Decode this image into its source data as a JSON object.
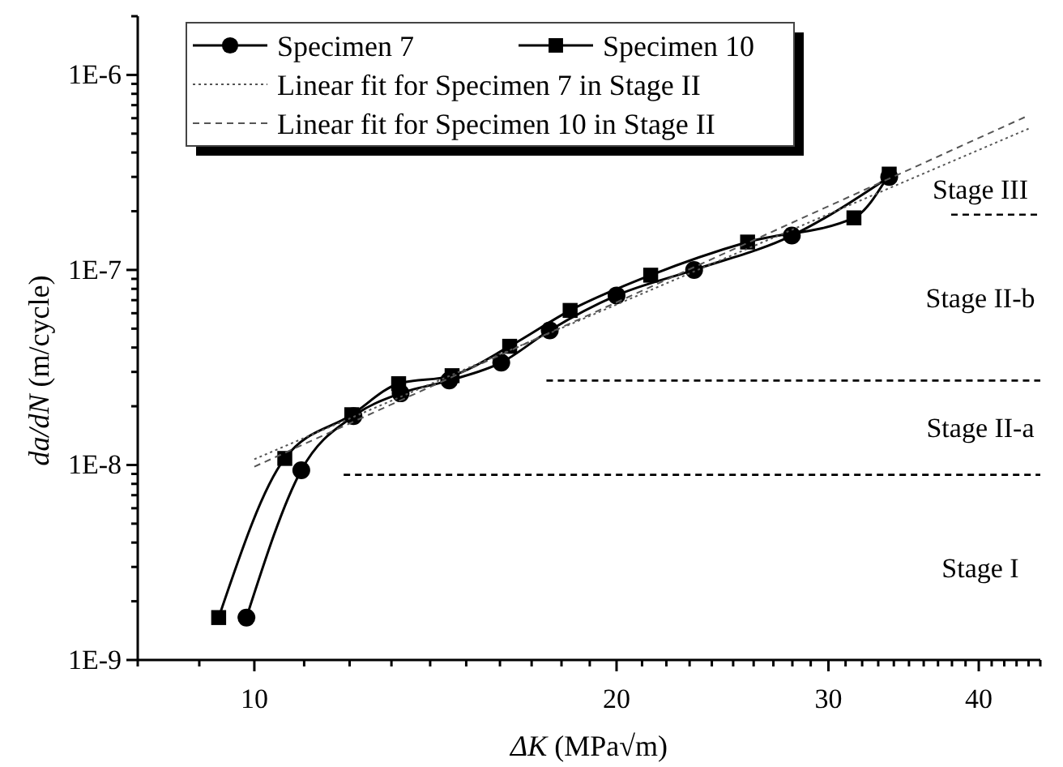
{
  "chart_data": {
    "type": "line",
    "xlabel": "ΔK (MPa√m)",
    "ylabel": "da/dN (m/cycle)",
    "log": "xy",
    "legend": "top",
    "grid": false,
    "xlim": [
      8,
      45
    ],
    "ylim": [
      1e-09,
      2e-06
    ],
    "xticks": [
      {
        "value": 8,
        "label": null
      },
      {
        "value": 9,
        "label": null
      },
      10,
      {
        "value": 11,
        "label": null
      },
      {
        "value": 12,
        "label": null
      },
      {
        "value": 13,
        "label": null
      },
      {
        "value": 14,
        "label": null
      },
      {
        "value": 15,
        "label": null
      },
      {
        "value": 16,
        "label": null
      },
      {
        "value": 17,
        "label": null
      },
      {
        "value": 18,
        "label": null
      },
      {
        "value": 19,
        "label": null
      },
      20,
      {
        "value": 21,
        "label": null
      },
      {
        "value": 22,
        "label": null
      },
      {
        "value": 23,
        "label": null
      },
      {
        "value": 24,
        "label": null
      },
      {
        "value": 25,
        "label": null
      },
      {
        "value": 26,
        "label": null
      },
      {
        "value": 27,
        "label": null
      },
      {
        "value": 28,
        "label": null
      },
      {
        "value": 29,
        "label": null
      },
      30,
      {
        "value": 31,
        "label": null
      },
      {
        "value": 32,
        "label": null
      },
      {
        "value": 33,
        "label": null
      },
      {
        "value": 34,
        "label": null
      },
      {
        "value": 35,
        "label": null
      },
      {
        "value": 36,
        "label": null
      },
      {
        "value": 37,
        "label": null
      },
      {
        "value": 38,
        "label": null
      },
      {
        "value": 39,
        "label": null
      },
      40,
      {
        "value": 41,
        "label": null
      },
      {
        "value": 42,
        "label": null
      },
      {
        "value": 43,
        "label": null
      },
      {
        "value": 44,
        "label": null
      },
      {
        "value": 45,
        "label": null
      }
    ],
    "yticks": [
      {
        "value": 1e-09,
        "label": "1E-9"
      },
      {
        "value": 2e-09,
        "label": null
      },
      {
        "value": 3e-09,
        "label": null
      },
      {
        "value": 4e-09,
        "label": null
      },
      {
        "value": 5e-09,
        "label": null
      },
      {
        "value": 6e-09,
        "label": null
      },
      {
        "value": 7e-09,
        "label": null
      },
      {
        "value": 8e-09,
        "label": null
      },
      {
        "value": 9e-09,
        "label": null
      },
      {
        "value": 1e-08,
        "label": "1E-8"
      },
      {
        "value": 2e-08,
        "label": null
      },
      {
        "value": 3e-08,
        "label": null
      },
      {
        "value": 4e-08,
        "label": null
      },
      {
        "value": 5e-08,
        "label": null
      },
      {
        "value": 6e-08,
        "label": null
      },
      {
        "value": 7e-08,
        "label": null
      },
      {
        "value": 8e-08,
        "label": null
      },
      {
        "value": 9e-08,
        "label": null
      },
      {
        "value": 1e-07,
        "label": "1E-7"
      },
      {
        "value": 2e-07,
        "label": null
      },
      {
        "value": 3e-07,
        "label": null
      },
      {
        "value": 4e-07,
        "label": null
      },
      {
        "value": 5e-07,
        "label": null
      },
      {
        "value": 6e-07,
        "label": null
      },
      {
        "value": 7e-07,
        "label": null
      },
      {
        "value": 8e-07,
        "label": null
      },
      {
        "value": 9e-07,
        "label": null
      },
      {
        "value": 1e-06,
        "label": "1E-6"
      },
      {
        "value": 2e-06,
        "label": null
      }
    ],
    "series": [
      {
        "name": "Specimen 7",
        "color": "#000000",
        "marker": "circle",
        "line_style": "solid",
        "x": [
          9.85,
          10.94,
          12.09,
          13.23,
          14.52,
          16.04,
          17.6,
          20.0,
          23.2,
          27.97,
          33.7
        ],
        "values": [
          1.65e-09,
          9.4e-09,
          1.78e-08,
          2.33e-08,
          2.71e-08,
          3.35e-08,
          4.9e-08,
          7.4e-08,
          1e-07,
          1.5e-07,
          3e-07
        ]
      },
      {
        "name": "Specimen 10",
        "color": "#000000",
        "marker": "square",
        "line_style": "solid",
        "x": [
          9.34,
          10.6,
          12.05,
          13.18,
          14.6,
          16.3,
          18.3,
          21.35,
          25.7,
          31.5,
          33.7
        ],
        "values": [
          1.65e-09,
          1.08e-08,
          1.81e-08,
          2.61e-08,
          2.87e-08,
          4.06e-08,
          6.2e-08,
          9.4e-08,
          1.39e-07,
          1.85e-07,
          3.1e-07
        ]
      },
      {
        "name": "Linear fit for Specimen 7 in Stage II",
        "color": "#555555",
        "marker": "none",
        "line_style": "dotted",
        "x": [
          10,
          44
        ],
        "values": [
          1.07e-08,
          5.3e-07
        ]
      },
      {
        "name": "Linear fit for Specimen 10 in Stage II",
        "color": "#555555",
        "marker": "none",
        "line_style": "dashed",
        "x": [
          10,
          44
        ],
        "values": [
          9.8e-09,
          6.2e-07
        ]
      }
    ],
    "ref_lines": [
      {
        "axis": "y",
        "value": 1.92e-07,
        "color": "#000000",
        "line_style": "dashed"
      },
      {
        "axis": "y",
        "value": 2.71e-08,
        "color": "#000000",
        "line_style": "dashed"
      },
      {
        "axis": "y",
        "value": 8.9e-09,
        "color": "#000000",
        "line_style": "dashed"
      }
    ],
    "annotations": [
      "Stage III",
      "Stage II-b",
      "Stage II-a",
      "Stage I"
    ]
  }
}
